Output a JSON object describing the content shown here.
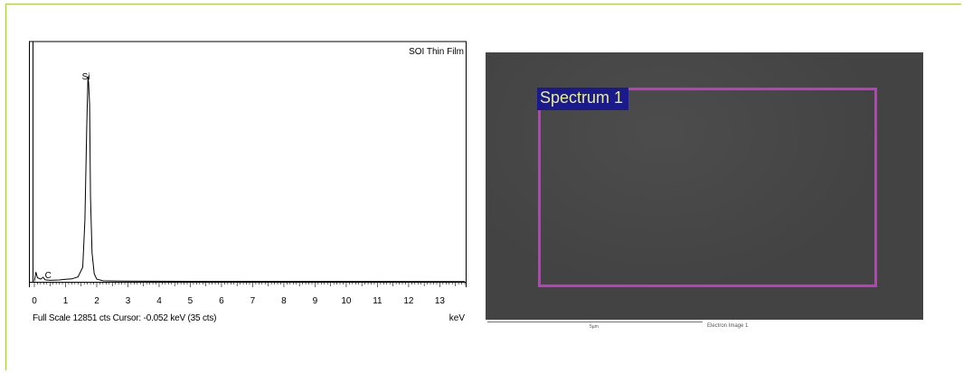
{
  "spectrum": {
    "title": "SOI Thin Film",
    "peak_labels": [
      "Si",
      "C"
    ],
    "footer_left": "Full Scale 12851 cts  Cursor: -0.052 keV (35 cts)",
    "x_unit": "keV",
    "colors": {
      "trace": "#000000",
      "axis": "#000000",
      "background": "#ffffff"
    }
  },
  "chart_data": {
    "type": "line",
    "title": "SOI Thin Film",
    "xlabel": "keV",
    "ylabel": "",
    "xlim": [
      0,
      13.8
    ],
    "ylim": [
      0,
      12851
    ],
    "x_ticks": [
      "0",
      "1",
      "2",
      "3",
      "4",
      "5",
      "6",
      "7",
      "8",
      "9",
      "10",
      "11",
      "12",
      "13"
    ],
    "series": [
      {
        "values_x": [
          0.0,
          0.05,
          0.1,
          0.2,
          0.28,
          0.35,
          0.5,
          0.8,
          1.0,
          1.2,
          1.4,
          1.55,
          1.62,
          1.68,
          1.72,
          1.74,
          1.77,
          1.8,
          1.85,
          1.92,
          2.0,
          2.2,
          3.0,
          5.0,
          8.0,
          13.8
        ],
        "values_y": [
          35,
          600,
          250,
          160,
          280,
          120,
          90,
          110,
          150,
          180,
          300,
          900,
          3800,
          9500,
          12700,
          12300,
          11000,
          5200,
          1800,
          500,
          160,
          60,
          40,
          30,
          20,
          15
        ]
      }
    ],
    "annotations": [
      {
        "text": "Si",
        "x": 1.74
      },
      {
        "text": "C",
        "x": 0.28
      }
    ],
    "grid": false
  },
  "image": {
    "roi_label": "Spectrum 1",
    "caption": "Electron Image 1",
    "scale_label": "5µm",
    "colors": {
      "background": "#434343",
      "roi": "#c13bc1",
      "label_bg": "#1a1a8c",
      "label_text": "#e8f08a"
    }
  },
  "frame": {
    "colors": {
      "border": "#9fcf3a"
    }
  }
}
